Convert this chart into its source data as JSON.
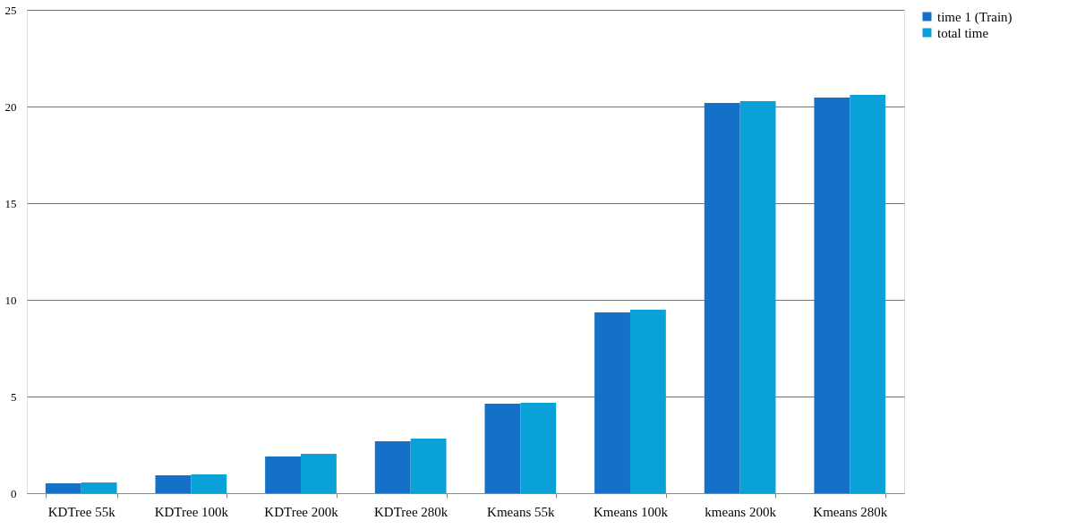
{
  "chart_data": {
    "type": "bar",
    "categories": [
      "KDTree 55k",
      "KDTree 100k",
      "KDTree 200k",
      "KDTree 280k",
      "Kmeans 55k",
      "Kmeans 100k",
      "kmeans 200k",
      "Kmeans 280k"
    ],
    "series": [
      {
        "name": "time 1 (Train)",
        "color": "#1570c8",
        "values": [
          0.51,
          0.93,
          1.9,
          2.69,
          4.63,
          9.35,
          20.19,
          20.46
        ]
      },
      {
        "name": "total time",
        "color": "#0aa0d8",
        "values": [
          0.56,
          0.97,
          2.04,
          2.82,
          4.68,
          9.49,
          20.28,
          20.6
        ]
      }
    ],
    "ylim": [
      0,
      25
    ],
    "yticks": [
      0,
      5,
      10,
      15,
      20,
      25
    ],
    "grid": "y",
    "legend": "right"
  }
}
